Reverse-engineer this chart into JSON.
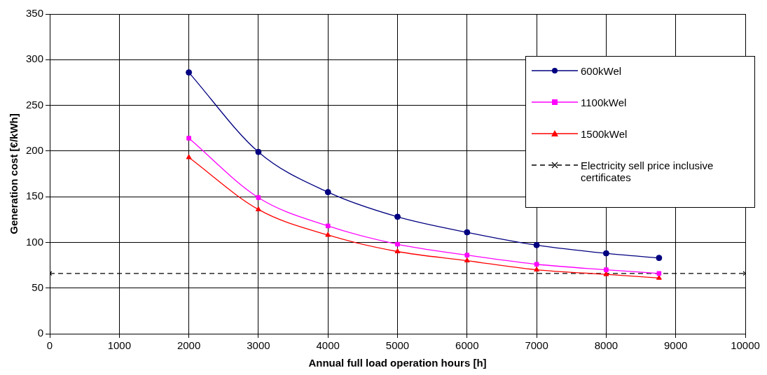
{
  "chart_data": {
    "type": "line",
    "xlabel": "Annual full load operation hours [h]",
    "ylabel": "Generation cost [€/kWh]",
    "xlim": [
      0,
      10000
    ],
    "xticks": [
      0,
      1000,
      2000,
      3000,
      4000,
      5000,
      6000,
      7000,
      8000,
      9000,
      10000
    ],
    "ylim": [
      0,
      350
    ],
    "yticks": [
      0,
      50,
      100,
      150,
      200,
      250,
      300,
      350
    ],
    "grid": true,
    "legend": "top right",
    "series": [
      {
        "name": "600kWel",
        "color": "#000080",
        "marker": "circle",
        "line_style": "solid",
        "x": [
          2000,
          3000,
          4000,
          5000,
          6000,
          7000,
          8000,
          8760
        ],
        "values": [
          286,
          199,
          155,
          128,
          111,
          97,
          88,
          83
        ]
      },
      {
        "name": "1100kWel",
        "color": "#ff00ff",
        "marker": "square",
        "line_style": "solid",
        "x": [
          2000,
          3000,
          4000,
          5000,
          6000,
          7000,
          8000,
          8760
        ],
        "values": [
          214,
          149,
          118,
          98,
          86,
          76,
          70,
          66
        ]
      },
      {
        "name": "1500kWel",
        "color": "#ff0000",
        "marker": "triangle",
        "line_style": "solid",
        "x": [
          2000,
          3000,
          4000,
          5000,
          6000,
          7000,
          8000,
          8760
        ],
        "values": [
          193,
          136,
          108,
          90,
          80,
          70,
          65,
          61
        ]
      },
      {
        "name": "Electricity sell price inclusive certificates",
        "color": "#000000",
        "marker": "cross",
        "line_style": "dashed",
        "x": [
          0,
          10000
        ],
        "values": [
          66,
          66
        ]
      }
    ]
  }
}
